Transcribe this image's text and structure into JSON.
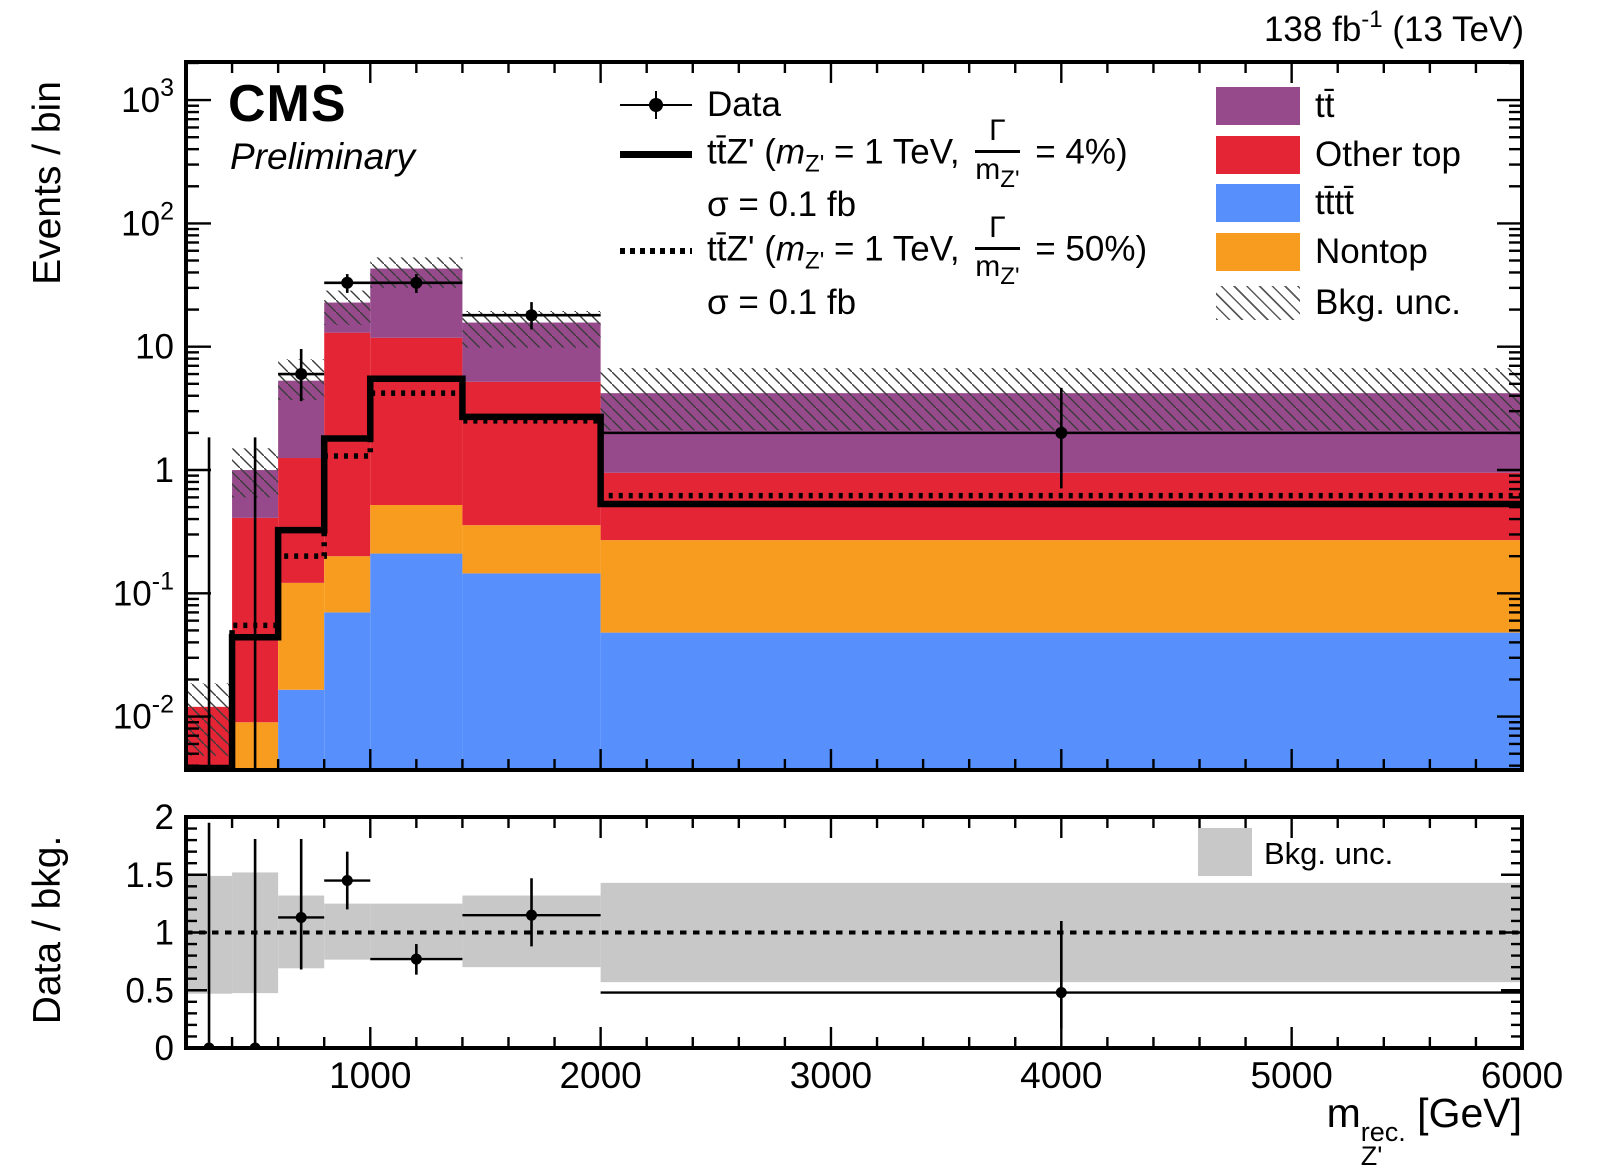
{
  "header": {
    "experiment": "CMS",
    "status": "Preliminary",
    "lumi_prefix": "138 fb",
    "lumi_sup": "-1",
    "lumi_suffix": " (13 TeV)"
  },
  "axes": {
    "y_main_title": "Events / bin",
    "y_ratio_title": "Data / bkg.",
    "x_title_main": "m",
    "x_title_sup": "rec.",
    "x_title_sub": "Z'",
    "x_title_suffix": " [GeV]"
  },
  "chart_data": {
    "type": "stacked-histogram-with-ratio",
    "x_axis": {
      "min": 200,
      "max": 6000,
      "minor_step": 200,
      "major_tick_values": [
        1000,
        2000,
        3000,
        4000,
        5000,
        6000
      ],
      "major_tick_labels": [
        "1000",
        "2000",
        "3000",
        "4000",
        "5000",
        "6000"
      ]
    },
    "y_axis_main": {
      "scale": "log",
      "min": 0.0037,
      "max": 2075,
      "tick_labels": [
        {
          "value": 1000,
          "base": "10",
          "exp": "3"
        },
        {
          "value": 100,
          "base": "10",
          "exp": "2"
        },
        {
          "value": 10,
          "base": "10",
          "exp": ""
        },
        {
          "value": 1,
          "base": "1",
          "exp": ""
        },
        {
          "value": 0.1,
          "base": "10",
          "exp": "-1"
        },
        {
          "value": 0.01,
          "base": "10",
          "exp": "-2"
        }
      ]
    },
    "y_axis_ratio": {
      "min": 0,
      "max": 2,
      "minor_step": 0.1,
      "tick_labels": [
        {
          "value": 0,
          "label": "0"
        },
        {
          "value": 0.5,
          "label": "0.5"
        },
        {
          "value": 1,
          "label": "1"
        },
        {
          "value": 1.5,
          "label": "1.5"
        },
        {
          "value": 2,
          "label": "2"
        }
      ]
    },
    "bin_edges": [
      200,
      400,
      600,
      800,
      1000,
      1400,
      2000,
      6000
    ],
    "series": [
      {
        "name": "tttt",
        "label": "tt̄tt̄",
        "color": "#5790fc",
        "values": [
          0,
          0,
          0.0165,
          0.07,
          0.21,
          0.145,
          0.048
        ]
      },
      {
        "name": "nontop",
        "label": "Nontop",
        "color": "#f89c20",
        "values": [
          0.004,
          0.009,
          0.105,
          0.13,
          0.31,
          0.212,
          0.222
        ]
      },
      {
        "name": "other_top",
        "label": "Other top",
        "color": "#e42536",
        "values": [
          0.008,
          0.4,
          1.13,
          12.8,
          11.3,
          4.84,
          0.68
        ]
      },
      {
        "name": "tt",
        "label": "tt̄",
        "color": "#964a8b",
        "values": [
          0,
          0.59,
          4.05,
          9.8,
          31.2,
          10.5,
          3.25
        ]
      }
    ],
    "bkg_total": [
      0.012,
      1.0,
      5.3,
      22.8,
      43,
      15.7,
      4.2
    ],
    "bkg_unc_band": [
      [
        0.0048,
        0.0186
      ],
      [
        0.6,
        1.5
      ],
      [
        3.7,
        7.9
      ],
      [
        15,
        28.5
      ],
      [
        30,
        53
      ],
      [
        9.8,
        19.5
      ],
      [
        2.1,
        6.7
      ]
    ],
    "data": {
      "label": "Data",
      "y": [
        0,
        0,
        6,
        33,
        33,
        18,
        2
      ],
      "err_lo": [
        0,
        0,
        3.62,
        27.3,
        27.3,
        13.8,
        0.71
      ],
      "err_hi": [
        1.84,
        1.84,
        9.58,
        38.8,
        38.8,
        23.0,
        4.64
      ]
    },
    "signal_solid": {
      "values": [
        0,
        0.044,
        0.325,
        1.8,
        5.5,
        2.7,
        0.53
      ]
    },
    "signal_dotted": {
      "values": [
        0,
        0.055,
        0.2,
        1.3,
        4.2,
        2.5,
        0.62
      ]
    },
    "ratio": {
      "y": [
        0,
        0,
        1.13,
        1.45,
        0.77,
        1.15,
        0.48
      ],
      "err_lo": [
        0,
        0,
        0.68,
        1.2,
        0.635,
        0.88,
        0.17
      ],
      "err_hi": [
        1.95,
        1.81,
        1.81,
        1.7,
        0.9,
        1.47,
        1.1
      ],
      "band": [
        [
          0.47,
          1.49
        ],
        [
          0.475,
          1.52
        ],
        [
          0.69,
          1.32
        ],
        [
          0.765,
          1.25
        ],
        [
          0.77,
          1.25
        ],
        [
          0.7,
          1.32
        ],
        [
          0.57,
          1.43
        ]
      ]
    }
  },
  "legend_main": {
    "data_label": "Data",
    "sig1_pre": "tt̄Z' (",
    "sig1_m": "m",
    "sig1_msub": "Z'",
    "sig1_mid": " = 1 TeV, ",
    "sig1_num": "Γ",
    "sig1_den": "m",
    "sig1_densub": "Z'",
    "sig1_suf": " = 4%)",
    "sig1_sigma": "σ = 0.1 fb",
    "sig2_pre": "tt̄Z' (",
    "sig2_m": "m",
    "sig2_msub": "Z'",
    "sig2_mid": " = 1 TeV, ",
    "sig2_num": "Γ",
    "sig2_den": "m",
    "sig2_densub": "Z'",
    "sig2_suf": " = 50%)",
    "sig2_sigma": "σ = 0.1 fb"
  },
  "legend_stack": [
    {
      "label": "tt̄",
      "color": "#964a8b"
    },
    {
      "label": "Other top",
      "color": "#e42536"
    },
    {
      "label": "tt̄tt̄",
      "color": "#5790fc"
    },
    {
      "label": "Nontop",
      "color": "#f89c20"
    },
    {
      "label": "Bkg. unc.",
      "color": "hatch"
    }
  ],
  "legend_ratio": {
    "label": "Bkg. unc.",
    "color": "#c8c8c8"
  }
}
